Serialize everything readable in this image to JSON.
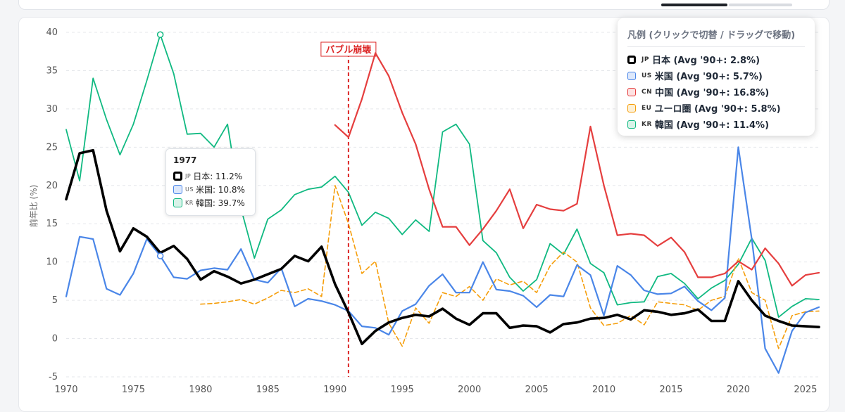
{
  "chart_data": {
    "type": "line",
    "ylabel": "前年比 (%)",
    "xlabel": "",
    "xlim": [
      1970,
      2026
    ],
    "ylim": [
      -5,
      40
    ],
    "x_ticks": [
      1970,
      1975,
      1980,
      1985,
      1990,
      1995,
      2000,
      2005,
      2010,
      2015,
      2020,
      2025
    ],
    "y_ticks": [
      -5,
      0,
      5,
      10,
      15,
      20,
      25,
      30,
      35,
      40
    ],
    "grid": "horizontal dashed",
    "annotation": {
      "label": "バブル崩壊",
      "x": 1991,
      "color": "#dc2626"
    },
    "series": [
      {
        "key": "kr",
        "name": "韓国",
        "color": "#10b981",
        "width": 1.8,
        "dash": "",
        "start": 1970,
        "values": [
          27.3,
          20.6,
          34.0,
          28.6,
          24.0,
          28.0,
          33.7,
          39.7,
          34.6,
          26.7,
          26.8,
          25.0,
          28.0,
          17.0,
          10.5,
          15.6,
          16.8,
          18.8,
          19.5,
          19.8,
          21.2,
          19.1,
          14.8,
          16.5,
          15.7,
          13.6,
          15.5,
          14.0,
          27.0,
          28.0,
          25.4,
          12.8,
          11.2,
          8.0,
          6.2,
          7.7,
          12.4,
          11.0,
          14.3,
          9.8,
          8.6,
          4.4,
          4.7,
          4.8,
          8.1,
          8.5,
          7.2,
          5.2,
          6.6,
          7.6,
          9.7,
          13.1,
          10.2,
          2.8,
          4.2,
          5.2,
          5.1
        ]
      },
      {
        "key": "eu",
        "name": "ユーロ圏",
        "color": "#f59e0b",
        "width": 1.6,
        "dash": "6,4",
        "start": 1980,
        "values": [
          4.5,
          4.6,
          4.8,
          5.1,
          4.5,
          5.3,
          6.3,
          6.0,
          6.5,
          5.5,
          20.0,
          15.0,
          8.5,
          10.1,
          2.0,
          -1.0,
          4.0,
          2.0,
          6.0,
          5.5,
          6.8,
          5.0,
          7.8,
          7.0,
          7.5,
          6.0,
          9.5,
          11.3,
          10.0,
          4.0,
          1.7,
          2.0,
          3.0,
          1.8,
          4.8,
          4.6,
          4.4,
          3.7,
          5.0,
          5.5,
          10.5,
          6.0,
          5.0,
          -1.3,
          3.0,
          3.5,
          3.6
        ]
      },
      {
        "key": "us",
        "name": "米国",
        "color": "#4a86e8",
        "width": 2.2,
        "dash": "",
        "start": 1970,
        "values": [
          5.5,
          13.3,
          13.0,
          6.5,
          5.7,
          8.5,
          13.0,
          10.8,
          8.0,
          7.8,
          8.9,
          9.2,
          9.0,
          11.7,
          7.7,
          7.3,
          9.2,
          4.2,
          5.2,
          4.9,
          4.4,
          3.6,
          1.6,
          1.4,
          0.5,
          3.6,
          4.5,
          6.9,
          8.4,
          6.0,
          6.0,
          10.0,
          6.4,
          6.2,
          5.6,
          4.1,
          5.7,
          5.5,
          9.6,
          8.3,
          3.0,
          9.5,
          8.3,
          6.3,
          5.8,
          5.9,
          6.8,
          4.9,
          3.7,
          5.3,
          25.0,
          13.0,
          -1.3,
          -4.5,
          1.0,
          3.4,
          4.1
        ]
      },
      {
        "key": "cn",
        "name": "中国",
        "color": "#e53e3e",
        "width": 2.2,
        "dash": "",
        "start": 1990,
        "values": [
          27.9,
          26.3,
          31.3,
          37.3,
          34.3,
          29.5,
          25.4,
          19.5,
          14.6,
          14.6,
          12.2,
          14.3,
          16.7,
          19.5,
          14.4,
          17.5,
          16.9,
          16.7,
          17.6,
          27.7,
          20.0,
          13.5,
          13.7,
          13.5,
          12.1,
          13.2,
          11.3,
          8.0,
          8.0,
          8.5,
          10.1,
          9.0,
          11.8,
          9.8,
          6.9,
          8.3,
          8.6
        ]
      },
      {
        "key": "jp",
        "name": "日本",
        "color": "#000000",
        "width": 3.6,
        "dash": "",
        "start": 1970,
        "values": [
          18.2,
          24.2,
          24.6,
          16.7,
          11.4,
          14.4,
          13.3,
          11.2,
          12.1,
          10.4,
          7.7,
          8.8,
          8.1,
          7.2,
          7.7,
          8.4,
          9.1,
          10.8,
          10.1,
          12.0,
          7.1,
          3.4,
          -0.7,
          1.0,
          2.1,
          2.7,
          3.1,
          2.9,
          3.9,
          2.6,
          1.8,
          3.3,
          3.3,
          1.4,
          1.7,
          1.6,
          0.8,
          1.9,
          2.1,
          2.6,
          2.7,
          3.1,
          2.5,
          3.7,
          3.5,
          3.1,
          3.3,
          3.8,
          2.3,
          2.3,
          7.5,
          5.0,
          3.0,
          2.3,
          1.7,
          1.6,
          1.5
        ]
      }
    ]
  },
  "legend": {
    "title": "凡例 (クリックで切替 / ドラッグで移動)",
    "items": [
      {
        "key": "jp",
        "code": "JP",
        "label": "日本 (Avg '90+: 2.8%)",
        "color": "#000000",
        "fill": "#ffffff"
      },
      {
        "key": "us",
        "code": "US",
        "label": "米国 (Avg '90+: 5.7%)",
        "color": "#4a86e8",
        "fill": "#dde8fb"
      },
      {
        "key": "cn",
        "code": "CN",
        "label": "中国 (Avg '90+: 16.8%)",
        "color": "#e53e3e",
        "fill": "#fde2e2"
      },
      {
        "key": "eu",
        "code": "EU",
        "label": "ユーロ圏 (Avg '90+: 5.8%)",
        "color": "#f59e0b",
        "fill": "#fdf0d5"
      },
      {
        "key": "kr",
        "code": "KR",
        "label": "韓国 (Avg '90+: 11.4%)",
        "color": "#10b981",
        "fill": "#d8f3e8"
      }
    ]
  },
  "tooltip": {
    "year": "1977",
    "rows": [
      {
        "code": "JP",
        "text": "日本: 11.2%",
        "color": "#000000",
        "fill": "#ffffff"
      },
      {
        "code": "US",
        "text": "米国: 10.8%",
        "color": "#4a86e8",
        "fill": "#dde8fb"
      },
      {
        "code": "KR",
        "text": "韓国: 39.7%",
        "color": "#10b981",
        "fill": "#d8f3e8"
      }
    ],
    "hover_x": 1977,
    "hover_points": [
      {
        "value": 10.8,
        "color": "#4a86e8"
      },
      {
        "value": 39.7,
        "color": "#10b981"
      }
    ]
  }
}
